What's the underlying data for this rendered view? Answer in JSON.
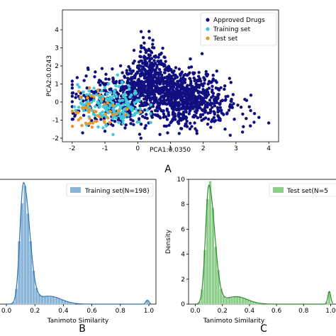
{
  "colors": {
    "approved": "#0f0f80",
    "training": "#40c8d8",
    "test": "#e8962a",
    "hist_training_fill": "#8ab4d8",
    "hist_training_line": "#2f73b0",
    "hist_test_fill": "#8dcf8a",
    "hist_test_line": "#2e8b2e"
  },
  "panel_labels": [
    "A",
    "B",
    "C"
  ],
  "chart_data": [
    {
      "type": "scatter",
      "title": "",
      "xlabel": "PCA1:0.0350",
      "ylabel": "PCA2:0.0243",
      "xlim": [
        -2.3,
        4.3
      ],
      "ylim": [
        -2.2,
        5.1
      ],
      "xticks": [
        -2,
        -1,
        0,
        1,
        2,
        3,
        4
      ],
      "yticks": [
        -2,
        -1,
        0,
        1,
        2,
        3,
        4
      ],
      "legend": "top-right",
      "series": [
        {
          "name": "Approved Drugs",
          "center": [
            0.7,
            0.2
          ],
          "spread_x": [
            -2.0,
            4.0
          ],
          "spread_y": [
            -2.0,
            4.9
          ],
          "approx_points": 1500
        },
        {
          "name": "Training set",
          "center": [
            -0.8,
            -0.2
          ],
          "spread_x": [
            -2.0,
            0.8
          ],
          "spread_y": [
            -1.8,
            1.5
          ],
          "approx_points": 198
        },
        {
          "name": "Test set",
          "center": [
            -1.2,
            -0.4
          ],
          "spread_x": [
            -2.0,
            0.5
          ],
          "spread_y": [
            -1.8,
            1.2
          ],
          "approx_points": 50
        }
      ]
    },
    {
      "type": "histogram",
      "xlabel": "Tanimoto Similarity",
      "ylabel": "",
      "xlim": [
        -0.05,
        1.05
      ],
      "ylim": [
        0,
        9.5
      ],
      "xticks": [
        0.0,
        0.2,
        0.4,
        0.6,
        0.8,
        1.0
      ],
      "legend": "top-right",
      "series": [
        {
          "name": "Training set(N=198)",
          "peak_x": 0.12,
          "peak_y": 9.2,
          "secondary_peak_x": 0.99,
          "secondary_peak_y": 0.3
        }
      ]
    },
    {
      "type": "histogram",
      "xlabel": "Tanimoto Similarity",
      "ylabel": "Density",
      "xlim": [
        -0.05,
        1.05
      ],
      "ylim": [
        0,
        10
      ],
      "xticks": [
        0.0,
        0.2,
        0.4,
        0.6,
        0.8,
        1.0
      ],
      "yticks": [
        0,
        2,
        4,
        6,
        8,
        10
      ],
      "legend": "top-right",
      "series": [
        {
          "name": "Test set(N=5",
          "peak_x": 0.1,
          "peak_y": 9.5,
          "secondary_peak_x": 0.99,
          "secondary_peak_y": 1.0
        }
      ]
    }
  ]
}
